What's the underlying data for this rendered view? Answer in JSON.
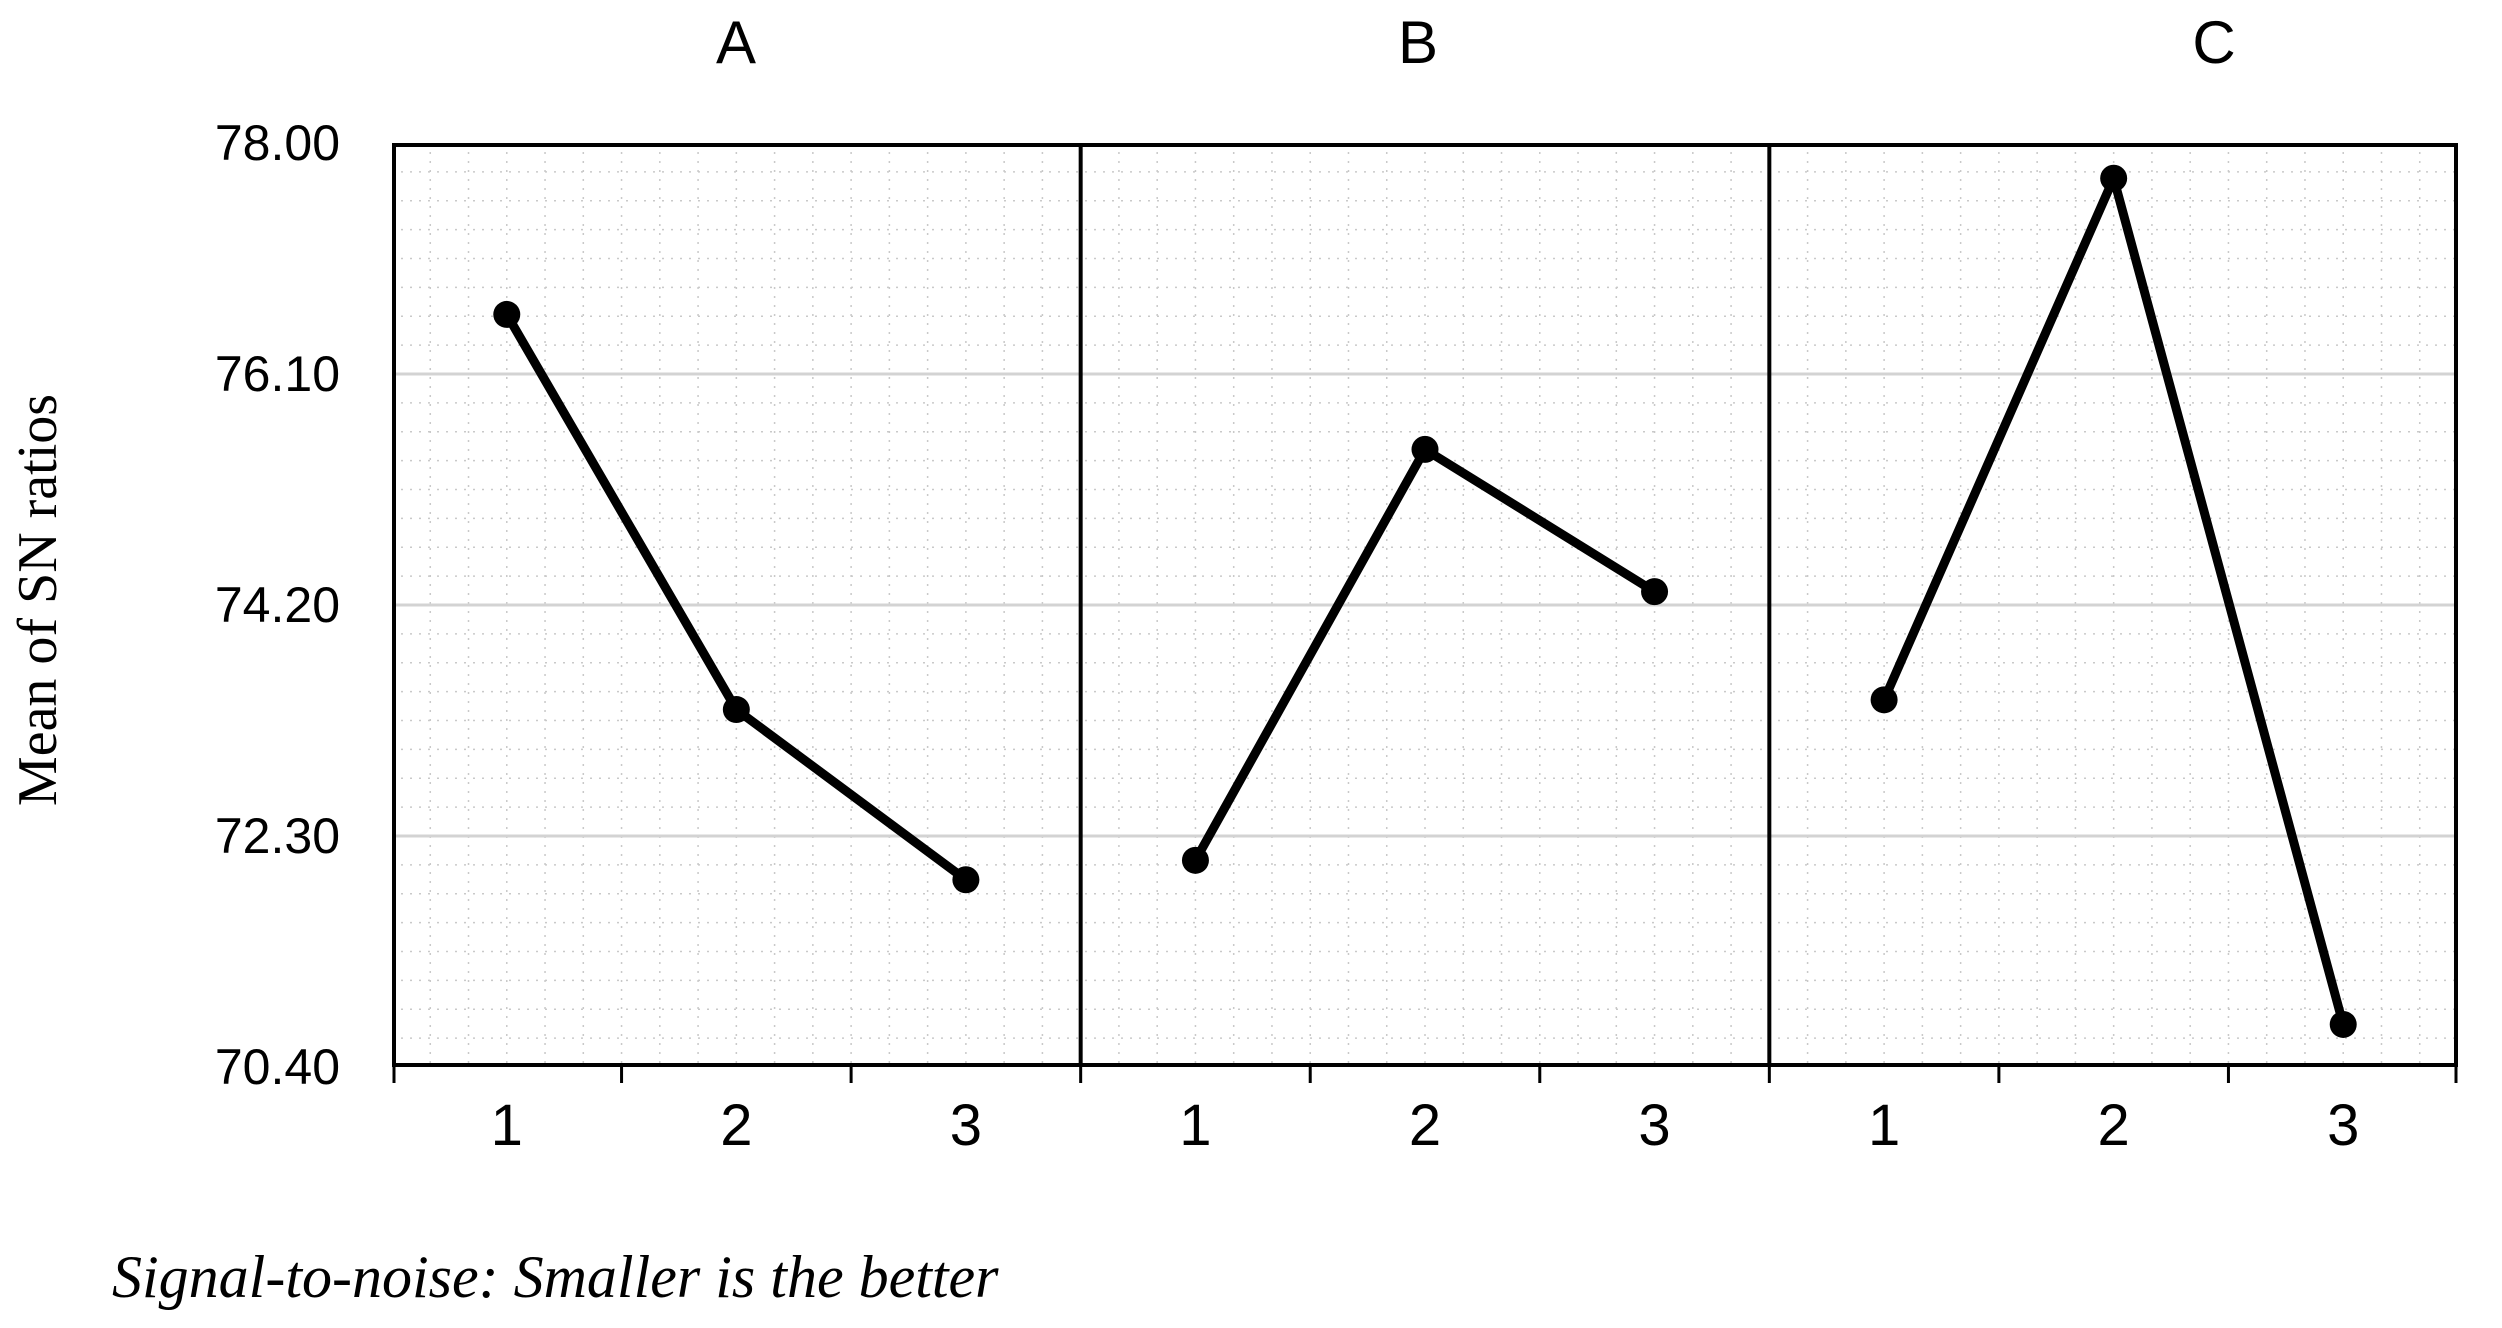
{
  "figure": {
    "caption": "Signal-to-noise: Smaller is the better"
  },
  "chart_data": {
    "type": "line",
    "subtype": "main-effects-plot",
    "panels": [
      {
        "label": "A",
        "values": [
          76.59,
          73.34,
          71.94
        ]
      },
      {
        "label": "B",
        "values": [
          72.1,
          75.48,
          74.31
        ]
      },
      {
        "label": "C",
        "values": [
          73.42,
          77.71,
          70.75
        ]
      }
    ],
    "categories": [
      "1",
      "2",
      "3"
    ],
    "xlabel": "",
    "ylabel": "Mean of SN ratios",
    "ylim": [
      70.4,
      78.0
    ],
    "yticks": [
      70.4,
      72.3,
      74.2,
      76.1,
      78.0
    ],
    "ytick_labels": [
      "70.40",
      "72.30",
      "74.20",
      "76.10",
      "78.00"
    ],
    "caption": "Signal-to-noise: Smaller is the better",
    "legend": "none",
    "grid": {
      "minor": "dotted",
      "major_horizontal": "solid"
    },
    "colors": {
      "series": "#000000",
      "border": "#000000",
      "major_grid": "#d3d3d3",
      "minor_grid": "#c9c9c9",
      "background": "#ffffff"
    }
  }
}
